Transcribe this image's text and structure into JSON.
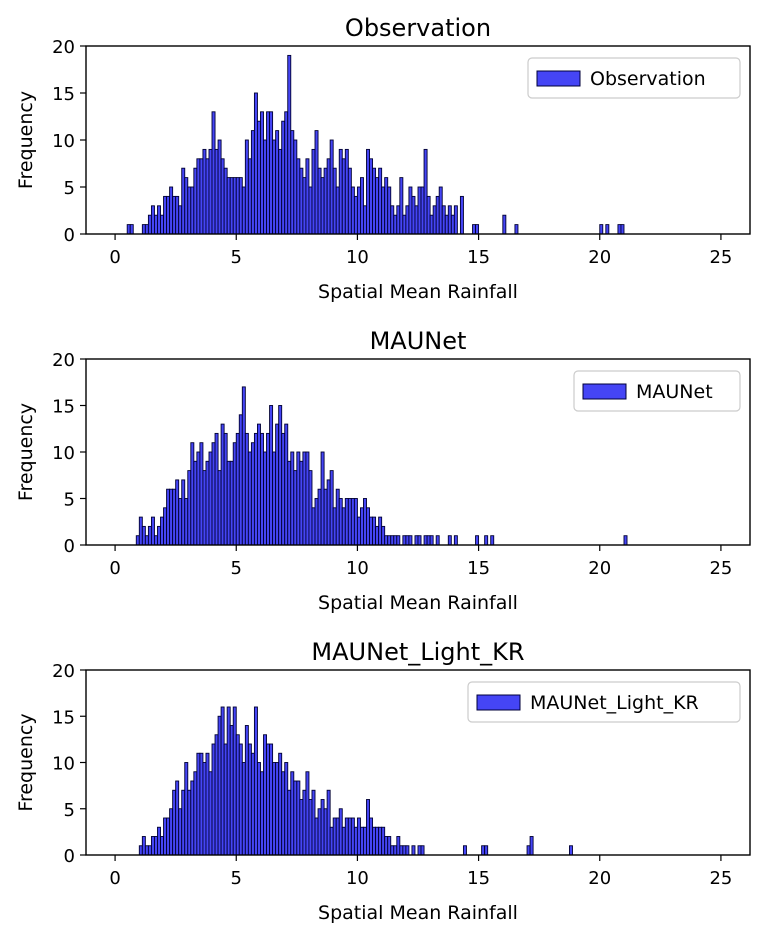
{
  "colors": {
    "bar_fill": "#4545f5",
    "bar_edge": "#00003a"
  },
  "chart_data": [
    {
      "type": "bar",
      "title": "Observation",
      "xlabel": "Spatial Mean Rainfall",
      "ylabel": "Frequency",
      "legend": "Observation",
      "legend_position": "top-right",
      "xlim": [
        -1.2,
        26.2
      ],
      "ylim": [
        0,
        20
      ],
      "xticks": [
        "0",
        "5",
        "10",
        "15",
        "20",
        "25"
      ],
      "yticks": [
        "0",
        "5",
        "10",
        "15",
        "20"
      ],
      "bin_start": 0.5,
      "bin_width": 0.125,
      "values": [
        1,
        1,
        0,
        0,
        0,
        1,
        1,
        2,
        3,
        2,
        3,
        2,
        4,
        4,
        5,
        4,
        4,
        3,
        7,
        6,
        5,
        5,
        7,
        8,
        8,
        9,
        8,
        9,
        13,
        9,
        10,
        8,
        7,
        6,
        6,
        6,
        6,
        6,
        5,
        10,
        8,
        11,
        15,
        12,
        13,
        10,
        13,
        13,
        10,
        11,
        9,
        12,
        13,
        19,
        11,
        10,
        8,
        7,
        6,
        8,
        5,
        9,
        11,
        7,
        6,
        7,
        8,
        10,
        7,
        5,
        9,
        8,
        9,
        7,
        5,
        4,
        5,
        6,
        3,
        9,
        8,
        7,
        6,
        7,
        5,
        6,
        5,
        3,
        2,
        3,
        6,
        2,
        3,
        5,
        4,
        3,
        5,
        5,
        9,
        4,
        2,
        3,
        4,
        5,
        3,
        2,
        3,
        2,
        3,
        0,
        4,
        0,
        0,
        0,
        1,
        1,
        0,
        0,
        0,
        0,
        0,
        0,
        0,
        0,
        2,
        0,
        0,
        0,
        1,
        0,
        0,
        0,
        0,
        0,
        0,
        0,
        0,
        0,
        0,
        0,
        0,
        0,
        0,
        0,
        0,
        0,
        0,
        0,
        0,
        0,
        0,
        0,
        0,
        0,
        0,
        0,
        1,
        0,
        1,
        0,
        0,
        0,
        1,
        1
      ]
    },
    {
      "type": "bar",
      "title": "MAUNet",
      "xlabel": "Spatial Mean Rainfall",
      "ylabel": "Frequency",
      "legend": "MAUNet",
      "legend_position": "top-right",
      "xlim": [
        -1.2,
        26.2
      ],
      "ylim": [
        0,
        20
      ],
      "xticks": [
        "0",
        "5",
        "10",
        "15",
        "20",
        "25"
      ],
      "yticks": [
        "0",
        "5",
        "10",
        "15",
        "20"
      ],
      "bin_start": 0.875,
      "bin_width": 0.125,
      "values": [
        1,
        3,
        2,
        1,
        2,
        3,
        1,
        2,
        3,
        4,
        6,
        6,
        6,
        7,
        5,
        7,
        5,
        8,
        11,
        9,
        10,
        11,
        8,
        9,
        10,
        11,
        12,
        8,
        13,
        12,
        9,
        9,
        11,
        12,
        14,
        17,
        12,
        10,
        11,
        12,
        13,
        12,
        10,
        12,
        15,
        10,
        13,
        15,
        12,
        13,
        9,
        10,
        8,
        10,
        9,
        10,
        10,
        8,
        4,
        5,
        6,
        10,
        6,
        7,
        8,
        4,
        6,
        5,
        4,
        5,
        5,
        5,
        5,
        3,
        4,
        5,
        4,
        3,
        3,
        2,
        3,
        2,
        1,
        1,
        1,
        1,
        1,
        0,
        1,
        1,
        1,
        0,
        1,
        1,
        0,
        1,
        1,
        1,
        0,
        1,
        0,
        0,
        0,
        1,
        0,
        1,
        0,
        0,
        0,
        0,
        0,
        0,
        1,
        0,
        0,
        1,
        0,
        1,
        0,
        0,
        0,
        0,
        0,
        0,
        0,
        0,
        0,
        0,
        0,
        0,
        0,
        0,
        0,
        0,
        0,
        0,
        0,
        0,
        0,
        0,
        0,
        0,
        0,
        0,
        0,
        0,
        0,
        0,
        0,
        0,
        0,
        0,
        0,
        0,
        0,
        0,
        0,
        0,
        0,
        0,
        0,
        1,
        0,
        0,
        0
      ]
    },
    {
      "type": "bar",
      "title": "MAUNet_Light_KR",
      "xlabel": "Spatial Mean Rainfall",
      "ylabel": "Frequency",
      "legend": "MAUNet_Light_KR",
      "legend_position": "top-right",
      "xlim": [
        -1.2,
        26.2
      ],
      "ylim": [
        0,
        20
      ],
      "xticks": [
        "0",
        "5",
        "10",
        "15",
        "20",
        "25"
      ],
      "yticks": [
        "0",
        "5",
        "10",
        "15",
        "20"
      ],
      "bin_start": 1.0,
      "bin_width": 0.125,
      "values": [
        1,
        2,
        1,
        1,
        2,
        2,
        3,
        2,
        4,
        4,
        5,
        7,
        8,
        5,
        7,
        10,
        7,
        8,
        9,
        11,
        11,
        10,
        11,
        9,
        12,
        13,
        15,
        16,
        12,
        16,
        14,
        16,
        13,
        12,
        10,
        14,
        12,
        11,
        16,
        10,
        9,
        13,
        12,
        12,
        10,
        10,
        11,
        9,
        10,
        7,
        9,
        8,
        8,
        6,
        7,
        9,
        6,
        7,
        4,
        5,
        6,
        5,
        7,
        3,
        4,
        4,
        5,
        3,
        4,
        4,
        4,
        3,
        4,
        3,
        3,
        6,
        4,
        3,
        3,
        3,
        3,
        2,
        2,
        1,
        1,
        2,
        1,
        1,
        1,
        0,
        1,
        0,
        1,
        1,
        0,
        0,
        0,
        0,
        0,
        0,
        0,
        0,
        0,
        0,
        0,
        0,
        0,
        1,
        0,
        0,
        0,
        0,
        0,
        1,
        1,
        0,
        0,
        0,
        0,
        0,
        0,
        0,
        0,
        0,
        0,
        0,
        0,
        0,
        1,
        2,
        0,
        0,
        0,
        0,
        0,
        0,
        0,
        0,
        0,
        0,
        0,
        0,
        1
      ]
    }
  ]
}
